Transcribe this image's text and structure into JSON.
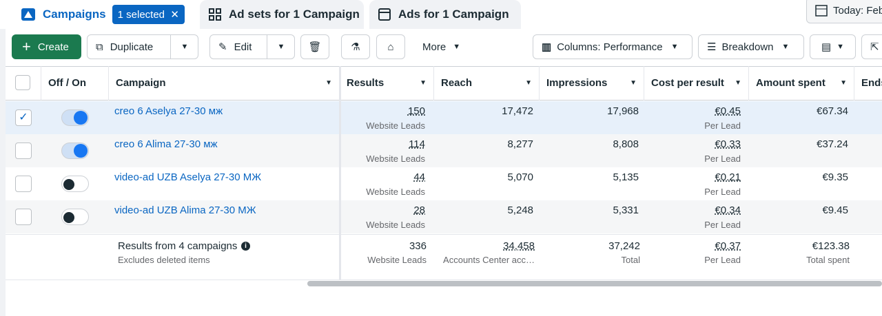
{
  "tabs": [
    {
      "label": "Campaigns",
      "badge": "1 selected"
    },
    {
      "label": "Ad sets for 1 Campaign"
    },
    {
      "label": "Ads for 1 Campaign"
    }
  ],
  "date": "Today: Feb",
  "toolbar": {
    "create": "Create",
    "duplicate": "Duplicate",
    "edit": "Edit",
    "more": "More",
    "columns": "Columns: Performance",
    "breakdown": "Breakdown"
  },
  "table": {
    "headers": [
      "Off / On",
      "Campaign",
      "Results",
      "Reach",
      "Impressions",
      "Cost per result",
      "Amount spent",
      "Ends"
    ],
    "rows": [
      {
        "selected": true,
        "on": true,
        "name": "creo 6 Aselya 27-30 мж",
        "results": "150",
        "results_sub": "Website Leads",
        "reach": "17,472",
        "impressions": "17,968",
        "cost": "€0.45",
        "cost_sub": "Per Lead",
        "spent": "€67.34"
      },
      {
        "selected": false,
        "on": true,
        "name": "creo 6 Alima 27-30 мж",
        "results": "114",
        "results_sub": "Website Leads",
        "reach": "8,277",
        "impressions": "8,808",
        "cost": "€0.33",
        "cost_sub": "Per Lead",
        "spent": "€37.24"
      },
      {
        "selected": false,
        "on": false,
        "name": "video-ad UZB Aselya 27-30 МЖ",
        "results": "44",
        "results_sub": "Website Leads",
        "reach": "5,070",
        "impressions": "5,135",
        "cost": "€0.21",
        "cost_sub": "Per Lead",
        "spent": "€9.35"
      },
      {
        "selected": false,
        "on": false,
        "name": "video-ad UZB Alima 27-30 МЖ",
        "results": "28",
        "results_sub": "Website Leads",
        "reach": "5,248",
        "impressions": "5,331",
        "cost": "€0.34",
        "cost_sub": "Per Lead",
        "spent": "€9.45"
      }
    ],
    "footer": {
      "title": "Results from 4 campaigns",
      "note": "Excludes deleted items",
      "results": "336",
      "results_sub": "Website Leads",
      "reach": "34,458",
      "reach_sub": "Accounts Center acc…",
      "impressions": "37,242",
      "impressions_sub": "Total",
      "cost": "€0.37",
      "cost_sub": "Per Lead",
      "spent": "€123.38",
      "spent_sub": "Total spent"
    }
  }
}
